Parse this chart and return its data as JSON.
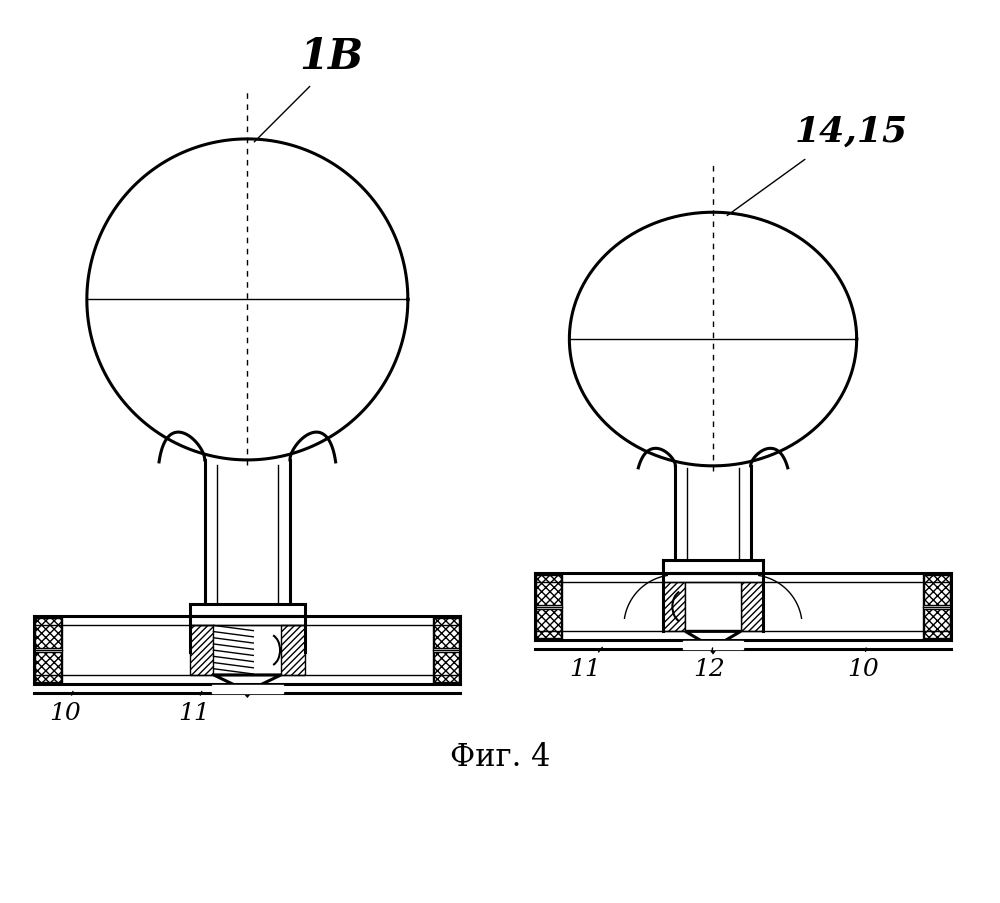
{
  "bg_color": "#ffffff",
  "line_color": "#000000",
  "fig_width": 10.0,
  "fig_height": 9.04,
  "title": "Фиг. 4",
  "title_fontsize": 22,
  "label_fontsize": 18,
  "lamp1_label": "1В",
  "lamp2_label": "14,15",
  "dpi": 100
}
